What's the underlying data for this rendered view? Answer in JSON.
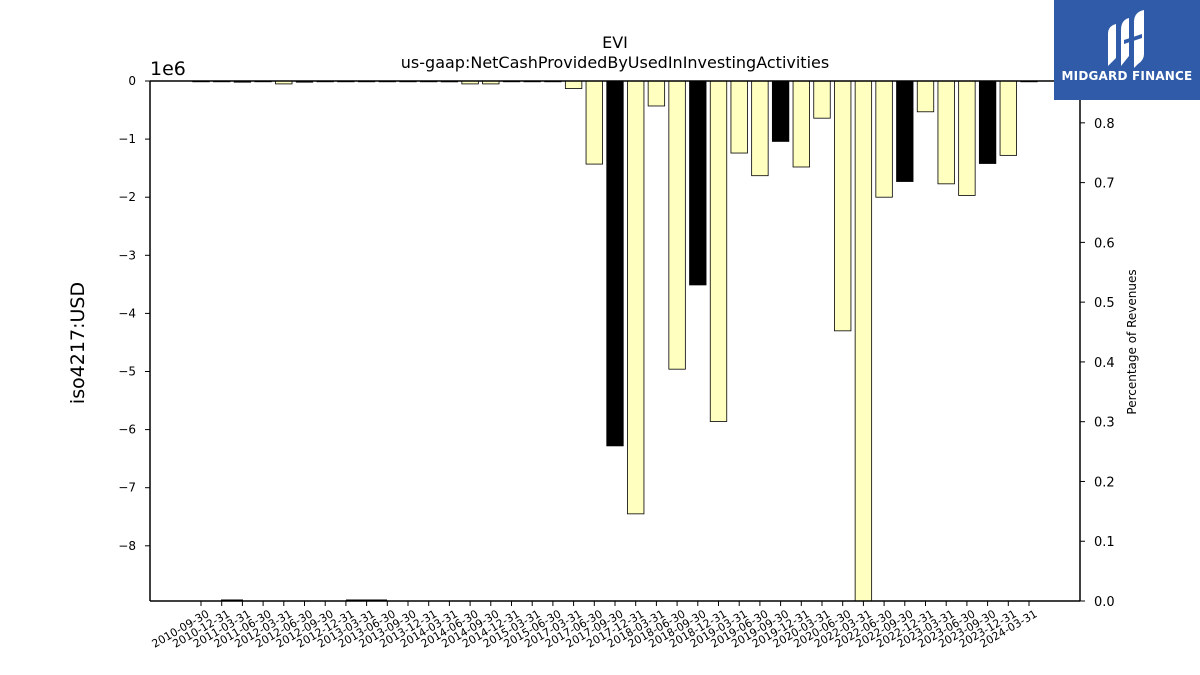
{
  "chart_data": {
    "type": "bar",
    "title": "EVI",
    "subtitle": "us-gaap:NetCashProvidedByUsedInInvestingActivities",
    "ylabel": "iso4217:USD",
    "ylabel_right": "Percentage of Revenues",
    "y_offset_label": "1e6",
    "ylim": [
      -8950000,
      0
    ],
    "y_ticks": [
      0,
      -1,
      -2,
      -3,
      -4,
      -5,
      -6,
      -7,
      -8
    ],
    "y2lim": [
      0,
      0.87
    ],
    "y2_ticks": [
      "0.0",
      "0.1",
      "0.2",
      "0.3",
      "0.4",
      "0.5",
      "0.6",
      "0.7",
      "0.8"
    ],
    "tick_labels": [
      "2010-09-30",
      "2010-12-31",
      "2011-03-31",
      "2011-06-30",
      "2012-03-31",
      "2012-06-30",
      "2012-09-30",
      "2012-12-31",
      "2013-03-31",
      "2013-06-30",
      "2013-09-30",
      "2013-12-31",
      "2014-03-31",
      "2014-06-30",
      "2014-09-30",
      "2014-12-31",
      "2015-03-31",
      "2015-06-30",
      "2017-03-31",
      "2017-06-30",
      "2017-09-30",
      "2017-12-31",
      "2018-03-31",
      "2018-06-30",
      "2018-09-30",
      "2018-12-31",
      "2019-03-31",
      "2019-06-30",
      "2019-09-30",
      "2019-12-31",
      "2020-03-31",
      "2020-06-30",
      "2022-03-31",
      "2022-06-30",
      "2022-09-30",
      "2022-12-31",
      "2023-03-31",
      "2023-06-30",
      "2023-09-30",
      "2023-12-31",
      "2024-03-31"
    ],
    "values": [
      0,
      0,
      -20000,
      -5000,
      -50000,
      -20000,
      0,
      0,
      0,
      0,
      0,
      0,
      -15000,
      -50000,
      -50000,
      0,
      0,
      0,
      -130000,
      -1430000,
      -6280000,
      -7450000,
      -430000,
      -4960000,
      -3510000,
      -5860000,
      -1240000,
      -1630000,
      -1040000,
      -1480000,
      -640000,
      -4300000,
      -8950000,
      -2000000,
      -1730000,
      -530000,
      -1770000,
      -1970000,
      -1420000,
      -1280000,
      0
    ],
    "colors": [
      "#ffffff",
      "#ffffff",
      "#000000",
      "#ffffff",
      "#ffffc0",
      "#000000",
      "#ffffff",
      "#ffffff",
      "#ffffff",
      "#ffffff",
      "#ffffff",
      "#ffffff",
      "#000000",
      "#ffffc0",
      "#ffffc0",
      "#ffffff",
      "#ffffff",
      "#ffffff",
      "#ffffc0",
      "#ffffc0",
      "#000000",
      "#ffffc0",
      "#ffffc0",
      "#ffffc0",
      "#000000",
      "#ffffc0",
      "#ffffc0",
      "#ffffc0",
      "#000000",
      "#ffffc0",
      "#ffffc0",
      "#ffffc0",
      "#ffffc0",
      "#ffffc0",
      "#000000",
      "#ffffc0",
      "#ffffc0",
      "#ffffc0",
      "#000000",
      "#ffffc0",
      "#ffffff"
    ],
    "grid": false,
    "legend": "none"
  },
  "logo": {
    "text": "MIDGARD FINANCE",
    "background": "#2f5ba8"
  }
}
